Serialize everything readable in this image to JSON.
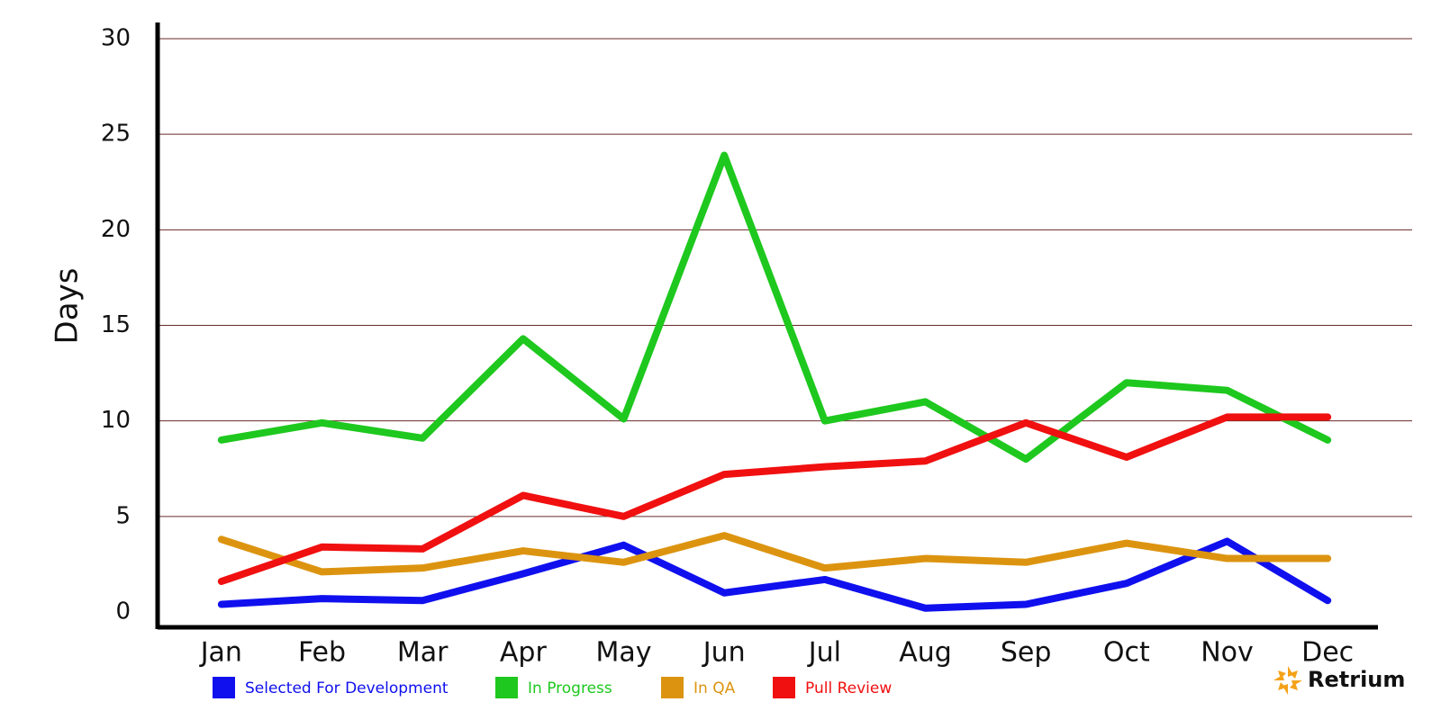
{
  "chart_data": {
    "type": "line",
    "y_label": "Days",
    "categories": [
      "Jan",
      "Feb",
      "Mar",
      "Apr",
      "May",
      "Jun",
      "Jul",
      "Aug",
      "Sep",
      "Oct",
      "Nov",
      "Dec"
    ],
    "series": [
      {
        "name": "Selected For Development",
        "color": "#1010ee",
        "values": [
          0.4,
          0.7,
          0.6,
          2.0,
          3.5,
          1.0,
          1.7,
          0.2,
          0.4,
          1.5,
          3.7,
          0.6
        ]
      },
      {
        "name": "In Progress",
        "color": "#1ec81e",
        "values": [
          9.0,
          9.9,
          9.1,
          14.3,
          10.1,
          23.9,
          10.0,
          11.0,
          8.0,
          12.0,
          11.6,
          9.0
        ]
      },
      {
        "name": "In QA",
        "color": "#dc9410",
        "values": [
          3.8,
          2.1,
          2.3,
          3.2,
          2.6,
          4.0,
          2.3,
          2.8,
          2.6,
          3.6,
          2.8,
          2.8
        ]
      },
      {
        "name": "Pull Review",
        "color": "#f01010",
        "values": [
          1.6,
          3.4,
          3.3,
          6.1,
          5.0,
          7.2,
          7.6,
          7.9,
          9.9,
          8.1,
          10.2,
          10.2
        ]
      }
    ],
    "ylim": [
      0,
      30
    ],
    "yticks": [
      0,
      5,
      10,
      15,
      20,
      25,
      30
    ],
    "grid": true,
    "watermark": "Retrium"
  }
}
